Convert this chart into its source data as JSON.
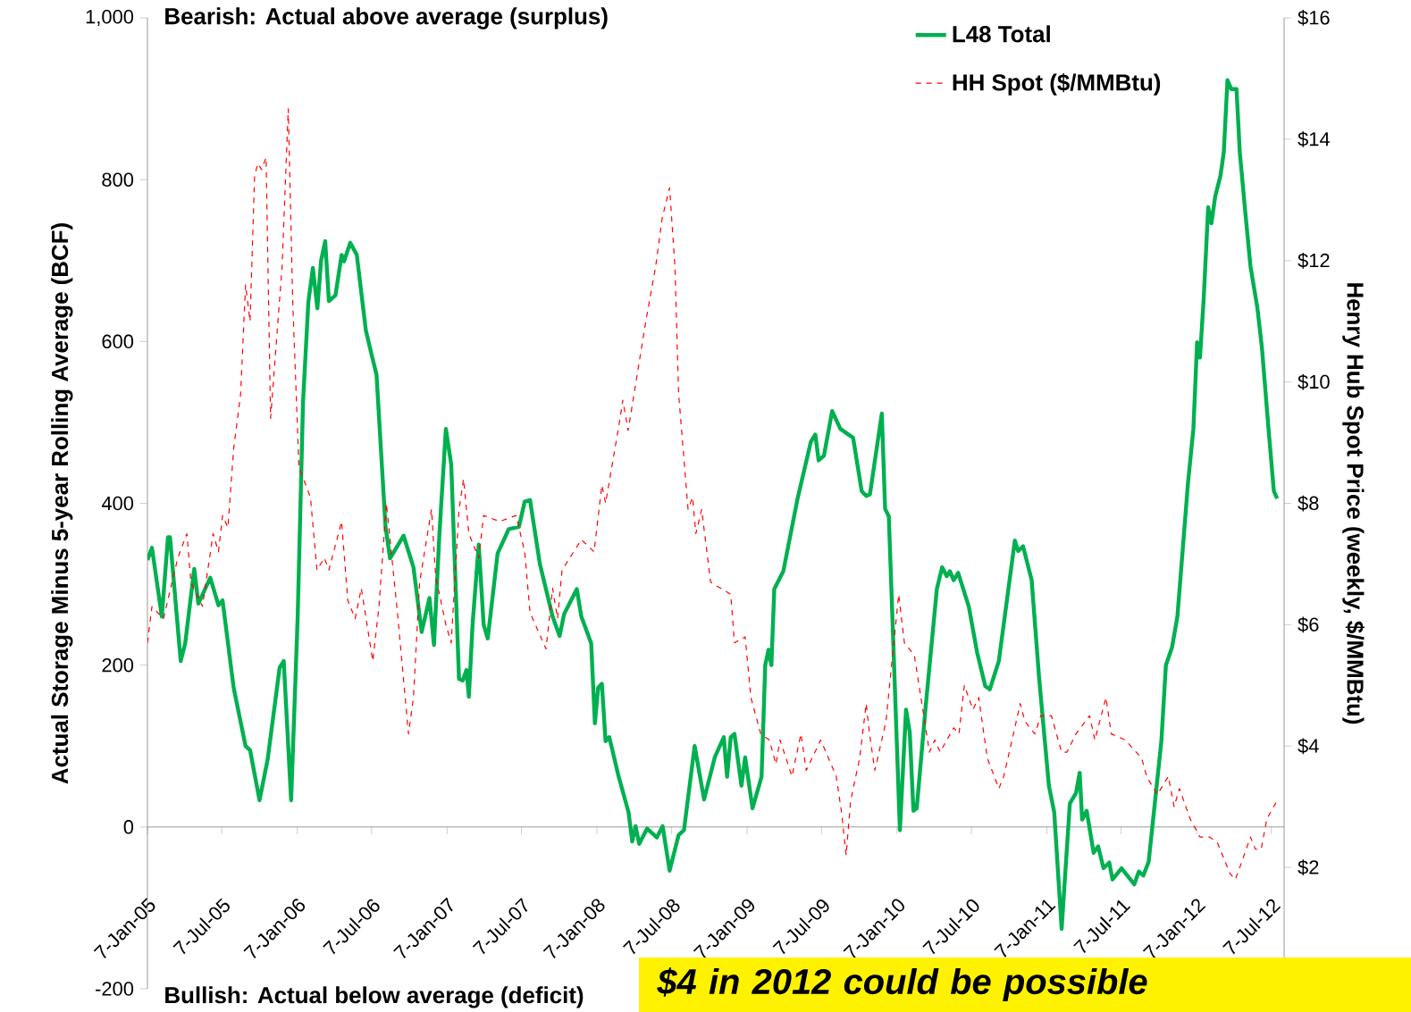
{
  "chart_data": {
    "type": "line",
    "ylabel": "Actual Storage Minus 5-year Rolling Average (BCF)",
    "y2label": "Henry Hub Spot Price (weekly, $/MMBtu)",
    "annotations": [
      "Bearish: Actual above average (surplus)",
      "Bullish: Actual below average (deficit)",
      "$4 in 2012 could be possible"
    ],
    "xlim": [
      "2005-01-07",
      "2012-08-07"
    ],
    "xticks": [
      {
        "value": "2005-01-07",
        "label": "7-Jan-05"
      },
      {
        "value": "2005-07-07",
        "label": "7-Jul-05"
      },
      {
        "value": "2006-01-07",
        "label": "7-Jan-06"
      },
      {
        "value": "2006-07-07",
        "label": "7-Jul-06"
      },
      {
        "value": "2007-01-07",
        "label": "7-Jan-07"
      },
      {
        "value": "2007-07-07",
        "label": "7-Jul-07"
      },
      {
        "value": "2008-01-07",
        "label": "7-Jan-08"
      },
      {
        "value": "2008-07-07",
        "label": "7-Jul-08"
      },
      {
        "value": "2009-01-07",
        "label": "7-Jan-09"
      },
      {
        "value": "2009-07-07",
        "label": "7-Jul-09"
      },
      {
        "value": "2010-01-07",
        "label": "7-Jan-10"
      },
      {
        "value": "2010-07-07",
        "label": "7-Jul-10"
      },
      {
        "value": "2011-01-07",
        "label": "7-Jan-11"
      },
      {
        "value": "2011-07-07",
        "label": "7-Jul-11"
      },
      {
        "value": "2012-01-07",
        "label": "7-Jan-12"
      },
      {
        "value": "2012-07-07",
        "label": "7-Jul-12"
      }
    ],
    "ylim": [
      -200,
      1000
    ],
    "yticks": [
      -200,
      0,
      200,
      400,
      600,
      800,
      {
        "value": 1000,
        "label": "1,000"
      }
    ],
    "y2lim": [
      0,
      16
    ],
    "y2ticks": [
      {
        "value": 2,
        "label": "$2"
      },
      {
        "value": 4,
        "label": "$4"
      },
      {
        "value": 6,
        "label": "$6"
      },
      {
        "value": 8,
        "label": "$8"
      },
      {
        "value": 10,
        "label": "$10"
      },
      {
        "value": 12,
        "label": "$12"
      },
      {
        "value": 14,
        "label": "$14"
      },
      {
        "value": 16,
        "label": "$16"
      }
    ],
    "legend": "top right",
    "series": [
      {
        "name": "L48 Total",
        "color": "#00b050",
        "line_style": "solid",
        "x": [
          "2005-01-07",
          "2005-01-18",
          "2005-02-11",
          "2005-02-26",
          "2005-03-03",
          "2005-03-29",
          "2005-04-09",
          "2005-05-01",
          "2005-05-11",
          "2005-06-09",
          "2005-06-29",
          "2005-07-09",
          "2005-08-05",
          "2005-09-03",
          "2005-09-14",
          "2005-10-07",
          "2005-10-27",
          "2005-11-25",
          "2005-12-05",
          "2005-12-23",
          "2006-01-08",
          "2006-01-21",
          "2006-02-03",
          "2006-02-14",
          "2006-02-25",
          "2006-03-06",
          "2006-03-16",
          "2006-03-25",
          "2006-04-10",
          "2006-04-25",
          "2006-05-01",
          "2006-05-16",
          "2006-06-01",
          "2006-06-23",
          "2006-07-06",
          "2006-07-19",
          "2006-08-10",
          "2006-08-21",
          "2006-09-23",
          "2006-10-17",
          "2006-11-06",
          "2006-11-25",
          "2006-12-06",
          "2006-12-19",
          "2007-01-04",
          "2007-01-17",
          "2007-02-05",
          "2007-02-14",
          "2007-02-23",
          "2007-03-01",
          "2007-03-10",
          "2007-03-25",
          "2007-04-06",
          "2007-04-16",
          "2007-05-10",
          "2007-06-06",
          "2007-07-01",
          "2007-07-15",
          "2007-07-28",
          "2007-08-21",
          "2007-09-21",
          "2007-10-08",
          "2007-10-19",
          "2007-11-19",
          "2007-11-30",
          "2007-12-24",
          "2008-01-02",
          "2008-01-10",
          "2008-01-19",
          "2008-01-28",
          "2008-02-06",
          "2008-02-28",
          "2008-03-24",
          "2008-04-02",
          "2008-04-10",
          "2008-04-19",
          "2008-05-08",
          "2008-06-01",
          "2008-06-15",
          "2008-07-02",
          "2008-07-24",
          "2008-08-06",
          "2008-09-01",
          "2008-09-24",
          "2008-10-20",
          "2008-11-11",
          "2008-11-19",
          "2008-11-28",
          "2008-12-07",
          "2008-12-24",
          "2009-01-02",
          "2009-01-20",
          "2009-02-11",
          "2009-02-20",
          "2009-02-28",
          "2009-03-07",
          "2009-03-14",
          "2009-04-05",
          "2009-05-09",
          "2009-06-11",
          "2009-06-22",
          "2009-06-30",
          "2009-07-13",
          "2009-08-02",
          "2009-08-22",
          "2009-09-22",
          "2009-10-13",
          "2009-10-24",
          "2009-11-02",
          "2009-12-01",
          "2009-12-09",
          "2009-12-18",
          "2009-12-29",
          "2010-01-14",
          "2010-01-29",
          "2010-02-07",
          "2010-02-16",
          "2010-02-24",
          "2010-03-18",
          "2010-04-14",
          "2010-04-27",
          "2010-05-08",
          "2010-05-16",
          "2010-05-25",
          "2010-06-05",
          "2010-07-01",
          "2010-07-21",
          "2010-08-10",
          "2010-08-21",
          "2010-09-12",
          "2010-10-21",
          "2010-10-29",
          "2010-11-10",
          "2010-12-01",
          "2010-12-19",
          "2011-01-12",
          "2011-01-25",
          "2011-02-12",
          "2011-03-04",
          "2011-03-19",
          "2011-03-28",
          "2011-04-03",
          "2011-04-14",
          "2011-05-01",
          "2011-05-12",
          "2011-05-25",
          "2011-06-08",
          "2011-06-16",
          "2011-07-08",
          "2011-08-08",
          "2011-08-19",
          "2011-08-30",
          "2011-09-12",
          "2011-10-13",
          "2011-10-24",
          "2011-11-08",
          "2011-11-21",
          "2011-12-17",
          "2011-12-30",
          "2012-01-08",
          "2012-01-15",
          "2012-01-24",
          "2012-02-04",
          "2012-02-12",
          "2012-02-21",
          "2012-03-05",
          "2012-03-13",
          "2012-03-22",
          "2012-03-31",
          "2012-04-13",
          "2012-04-21",
          "2012-05-04",
          "2012-05-17",
          "2012-06-03",
          "2012-06-14",
          "2012-06-30",
          "2012-07-13",
          "2012-07-21"
        ],
        "values": [
          330,
          345,
          260,
          358,
          358,
          205,
          227,
          319,
          276,
          308,
          274,
          280,
          172,
          100,
          95,
          33,
          84,
          197,
          205,
          33,
          260,
          525,
          649,
          691,
          641,
          700,
          724,
          650,
          657,
          707,
          699,
          722,
          707,
          614,
          586,
          559,
          371,
          332,
          360,
          321,
          241,
          283,
          225,
          360,
          492,
          448,
          183,
          181,
          194,
          161,
          250,
          349,
          250,
          233,
          338,
          368,
          371,
          402,
          404,
          325,
          260,
          236,
          263,
          294,
          260,
          227,
          128,
          172,
          177,
          106,
          111,
          64,
          18,
          -18,
          1,
          -21,
          -2,
          -13,
          1,
          -54,
          -10,
          -4,
          100,
          34,
          86,
          111,
          62,
          111,
          115,
          51,
          86,
          23,
          62,
          200,
          219,
          200,
          294,
          316,
          404,
          476,
          485,
          453,
          459,
          514,
          492,
          481,
          415,
          409,
          411,
          511,
          393,
          384,
          227,
          -4,
          145,
          117,
          20,
          23,
          150,
          294,
          321,
          310,
          316,
          305,
          314,
          272,
          216,
          174,
          170,
          205,
          354,
          341,
          347,
          305,
          185,
          51,
          18,
          -126,
          29,
          42,
          67,
          9,
          20,
          -32,
          -24,
          -51,
          -44,
          -65,
          -51,
          -71,
          -55,
          -60,
          -43,
          106,
          200,
          222,
          260,
          426,
          492,
          599,
          580,
          652,
          766,
          746,
          779,
          805,
          834,
          923,
          912,
          912,
          834,
          762,
          693,
          641,
          592,
          492,
          415,
          406
        ]
      },
      {
        "name": "HH Spot ($/MMBtu)",
        "color": "#ff0000",
        "line_style": "dashed",
        "axis": "y2",
        "x": [
          "2005-01-07",
          "2005-01-18",
          "2005-02-15",
          "2005-03-22",
          "2005-04-13",
          "2005-04-23",
          "2005-05-21",
          "2005-06-16",
          "2005-06-29",
          "2005-07-09",
          "2005-07-22",
          "2005-08-05",
          "2005-08-22",
          "2005-09-03",
          "2005-09-14",
          "2005-09-25",
          "2005-10-03",
          "2005-10-12",
          "2005-10-23",
          "2005-11-03",
          "2005-12-01",
          "2005-12-16",
          "2005-12-27",
          "2006-01-11",
          "2006-02-08",
          "2006-02-24",
          "2006-03-14",
          "2006-03-25",
          "2006-04-25",
          "2006-05-10",
          "2006-05-28",
          "2006-06-12",
          "2006-07-10",
          "2006-07-25",
          "2006-08-12",
          "2006-09-08",
          "2006-10-05",
          "2006-10-17",
          "2006-11-01",
          "2006-11-30",
          "2006-12-10",
          "2007-01-04",
          "2007-01-17",
          "2007-02-05",
          "2007-02-16",
          "2007-03-01",
          "2007-03-25",
          "2007-04-06",
          "2007-05-15",
          "2007-06-24",
          "2007-07-15",
          "2007-07-28",
          "2007-09-05",
          "2007-09-21",
          "2007-10-03",
          "2007-10-14",
          "2007-11-30",
          "2007-12-31",
          "2008-01-19",
          "2008-01-28",
          "2008-03-01",
          "2008-03-10",
          "2008-03-23",
          "2008-04-04",
          "2008-05-05",
          "2008-05-29",
          "2008-06-14",
          "2008-07-02",
          "2008-07-15",
          "2008-07-24",
          "2008-08-16",
          "2008-08-27",
          "2008-09-04",
          "2008-09-18",
          "2008-10-10",
          "2008-11-28",
          "2008-12-07",
          "2009-01-02",
          "2009-01-16",
          "2009-02-09",
          "2009-03-02",
          "2009-03-18",
          "2009-03-28",
          "2009-04-26",
          "2009-05-18",
          "2009-05-31",
          "2009-07-05",
          "2009-08-12",
          "2009-08-25",
          "2009-09-05",
          "2009-09-16",
          "2009-10-08",
          "2009-10-24",
          "2009-11-01",
          "2009-11-14",
          "2009-12-11",
          "2010-01-11",
          "2010-01-25",
          "2010-02-18",
          "2010-03-27",
          "2010-04-09",
          "2010-04-22",
          "2010-05-25",
          "2010-06-07",
          "2010-06-20",
          "2010-07-11",
          "2010-07-25",
          "2010-08-15",
          "2010-09-12",
          "2010-09-24",
          "2010-10-21",
          "2010-11-03",
          "2010-11-15",
          "2010-12-09",
          "2010-12-23",
          "2011-01-18",
          "2011-02-12",
          "2011-02-25",
          "2011-03-19",
          "2011-04-21",
          "2011-05-04",
          "2011-05-31",
          "2011-06-13",
          "2011-07-17",
          "2011-08-26",
          "2011-09-07",
          "2011-10-03",
          "2011-10-30",
          "2011-11-13",
          "2011-11-26",
          "2011-12-22",
          "2012-01-15",
          "2012-02-08",
          "2012-02-27",
          "2012-03-28",
          "2012-04-10",
          "2012-04-21",
          "2012-05-17",
          "2012-05-29",
          "2012-06-12",
          "2012-06-26",
          "2012-07-21"
        ],
        "values": [
          5.7,
          6.3,
          6.1,
          7.1,
          7.5,
          6.7,
          6.3,
          7.5,
          7.2,
          7.8,
          7.6,
          8.9,
          9.8,
          11.6,
          11.0,
          13.4,
          13.6,
          13.5,
          13.7,
          9.4,
          11.9,
          14.5,
          11.3,
          8.6,
          8.1,
          6.9,
          7.1,
          6.9,
          7.7,
          6.4,
          6.1,
          6.6,
          5.4,
          6.3,
          8.0,
          6.2,
          4.2,
          4.8,
          6.7,
          7.9,
          6.8,
          6.0,
          5.7,
          7.9,
          8.4,
          7.5,
          7.1,
          7.8,
          7.7,
          7.8,
          7.2,
          6.2,
          5.6,
          6.6,
          6.1,
          6.9,
          7.4,
          7.2,
          8.3,
          8.0,
          9.3,
          9.7,
          9.2,
          9.7,
          11.0,
          11.9,
          12.7,
          13.2,
          11.9,
          9.8,
          7.9,
          8.1,
          7.5,
          7.9,
          6.7,
          6.5,
          5.7,
          5.8,
          4.8,
          4.2,
          4.1,
          3.7,
          4.1,
          3.5,
          4.2,
          3.6,
          4.1,
          3.5,
          2.9,
          2.2,
          3.1,
          3.8,
          4.7,
          4.2,
          3.6,
          4.4,
          6.5,
          5.7,
          5.5,
          3.9,
          4.1,
          3.9,
          4.3,
          4.2,
          5.0,
          4.6,
          4.8,
          3.8,
          3.3,
          3.5,
          4.3,
          4.7,
          4.4,
          4.2,
          4.5,
          4.5,
          3.9,
          3.9,
          4.2,
          4.5,
          4.1,
          4.8,
          4.2,
          4.1,
          3.8,
          3.5,
          3.2,
          3.5,
          3.0,
          3.3,
          2.8,
          2.5,
          2.5,
          2.4,
          1.9,
          1.8,
          2.0,
          2.5,
          2.3,
          2.3,
          2.8,
          3.1
        ]
      }
    ]
  }
}
